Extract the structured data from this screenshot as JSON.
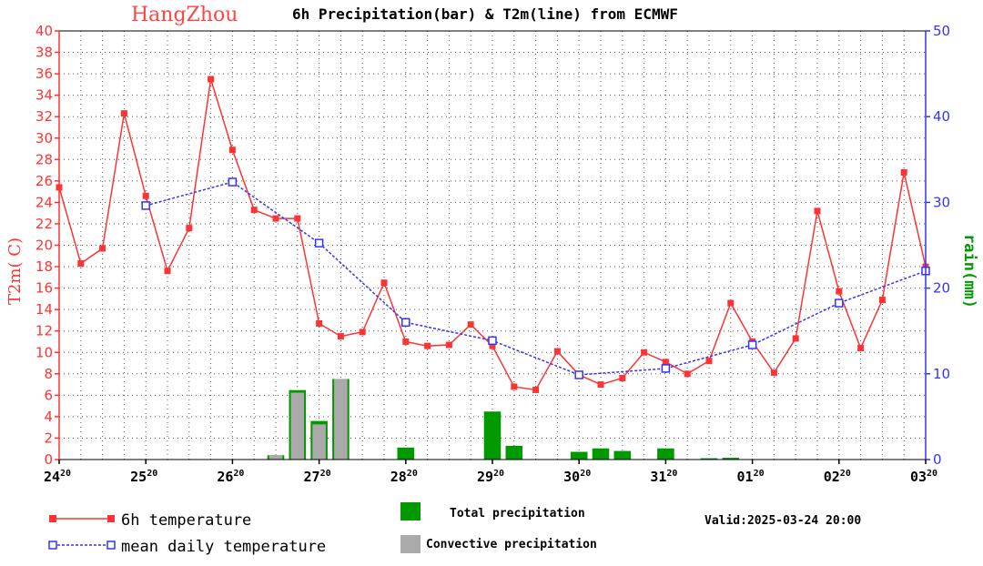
{
  "chart_data": {
    "type": "line",
    "title_city": "HangZhou",
    "title_rest": "6h Precipitation(bar) & T2m(line) from ECMWF",
    "ylabel_left": "T2m( C)",
    "ylabel_right": "rain(mm)",
    "ylim_left": [
      0,
      40
    ],
    "ylim_right": [
      0,
      50
    ],
    "yticks_left": [
      "0",
      "2",
      "4",
      "6",
      "8",
      "10",
      "12",
      "14",
      "16",
      "18",
      "20",
      "22",
      "24",
      "26",
      "28",
      "30",
      "32",
      "34",
      "36",
      "38",
      "40"
    ],
    "yticks_right": [
      "0",
      "10",
      "20",
      "30",
      "40",
      "50"
    ],
    "x_ticks": [
      {
        "day": "24",
        "hour": "20"
      },
      {
        "day": "25",
        "hour": "20"
      },
      {
        "day": "26",
        "hour": "20"
      },
      {
        "day": "27",
        "hour": "20"
      },
      {
        "day": "28",
        "hour": "20"
      },
      {
        "day": "29",
        "hour": "20"
      },
      {
        "day": "30",
        "hour": "20"
      },
      {
        "day": "31",
        "hour": "20"
      },
      {
        "day": "01",
        "hour": "20"
      },
      {
        "day": "02",
        "hour": "20"
      },
      {
        "day": "03",
        "hour": "20"
      }
    ],
    "grid": true,
    "temp_6h": {
      "name": "6h temperature",
      "color": "#ff3333",
      "x": [
        0,
        0.25,
        0.5,
        0.75,
        1,
        1.25,
        1.5,
        1.75,
        2,
        2.25,
        2.5,
        2.75,
        3,
        3.25,
        3.5,
        3.75,
        4,
        4.25,
        4.5,
        4.75,
        5,
        5.25,
        5.5,
        5.75,
        6,
        6.25,
        6.5,
        6.75,
        7,
        7.25,
        7.5,
        7.75,
        8,
        8.25,
        8.5,
        8.75,
        9,
        9.25,
        9.5,
        9.75,
        10
      ],
      "values": [
        25.4,
        18.3,
        19.7,
        32.3,
        24.6,
        17.6,
        21.6,
        35.5,
        28.9,
        23.3,
        22.5,
        22.5,
        12.7,
        11.5,
        11.9,
        16.5,
        11.0,
        10.6,
        10.7,
        12.6,
        10.6,
        6.8,
        6.5,
        10.1,
        7.9,
        7.0,
        7.6,
        10.0,
        9.1,
        8.0,
        9.2,
        14.6,
        11.0,
        8.1,
        11.3,
        23.2,
        15.7,
        10.4,
        14.9,
        26.8,
        18.0
      ]
    },
    "temp_daily": {
      "name": "mean daily temperature",
      "color": "#3333ff",
      "x": [
        1,
        2,
        3,
        4,
        5,
        6,
        7,
        8,
        9,
        10
      ],
      "values": [
        23.7,
        25.9,
        20.2,
        12.8,
        11.1,
        7.9,
        8.5,
        10.7,
        14.6,
        17.6
      ]
    },
    "precip_total": {
      "name": "Total precipitation",
      "color": "#009900",
      "x": [
        2.5,
        2.75,
        3,
        3.25,
        4,
        5,
        5.25,
        6,
        6.25,
        6.5,
        7,
        7.5,
        7.75
      ],
      "values": [
        0.5,
        8.1,
        4.5,
        9.4,
        1.4,
        5.6,
        1.6,
        0.9,
        1.3,
        1.0,
        1.3,
        0.15,
        0.2
      ]
    },
    "precip_convective": {
      "name": "Convective precipitation",
      "color": "#aaaaaa",
      "x": [
        2.5,
        2.75,
        3,
        3.25
      ],
      "values": [
        0.5,
        7.8,
        4.1,
        9.4
      ]
    },
    "valid": "Valid:2025-03-24 20:00"
  }
}
